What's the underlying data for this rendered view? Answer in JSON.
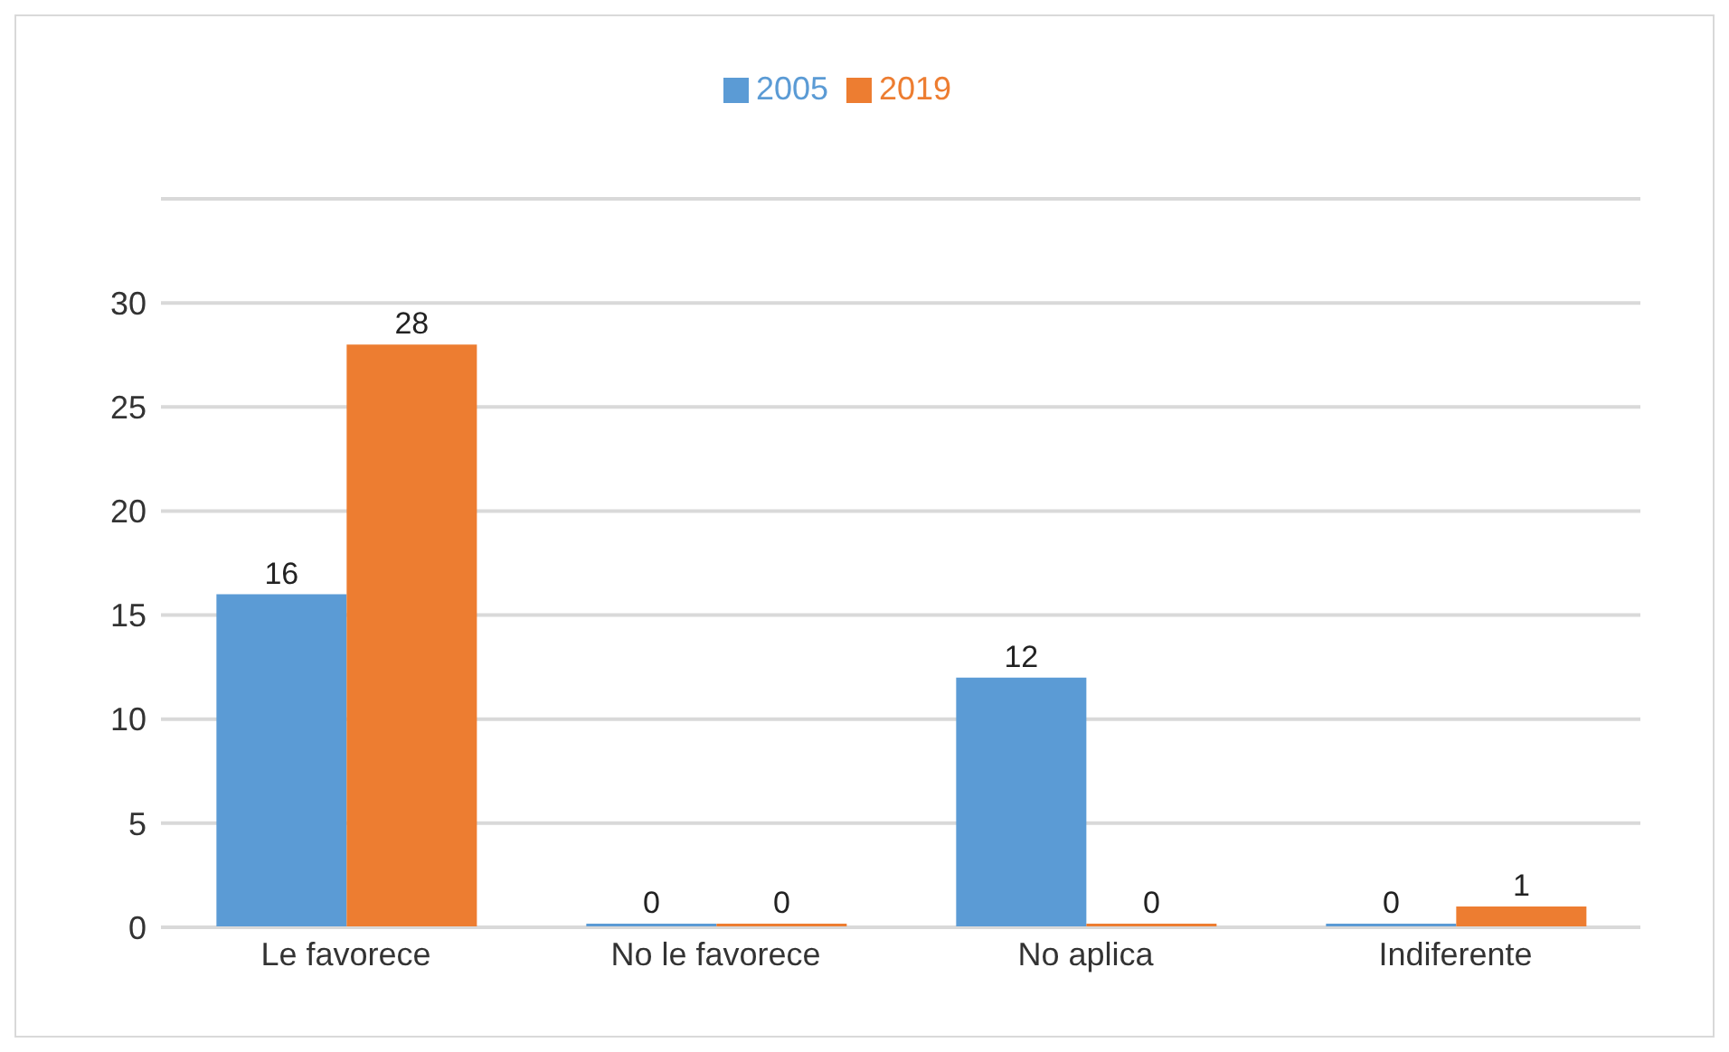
{
  "chart_data": {
    "type": "bar",
    "categories": [
      "Le favorece",
      "No le favorece",
      "No aplica",
      "Indiferente"
    ],
    "series": [
      {
        "name": "2005",
        "color": "#5b9bd5",
        "values": [
          16,
          0,
          12,
          0
        ]
      },
      {
        "name": "2019",
        "color": "#ed7d31",
        "values": [
          28,
          0,
          0,
          1
        ]
      }
    ],
    "ylim": [
      0,
      35
    ],
    "yticks": [
      0,
      5,
      10,
      15,
      20,
      25,
      30,
      {
        "value": 35,
        "label": null
      }
    ],
    "grid": "y",
    "legend": "top",
    "data_labels": true
  }
}
